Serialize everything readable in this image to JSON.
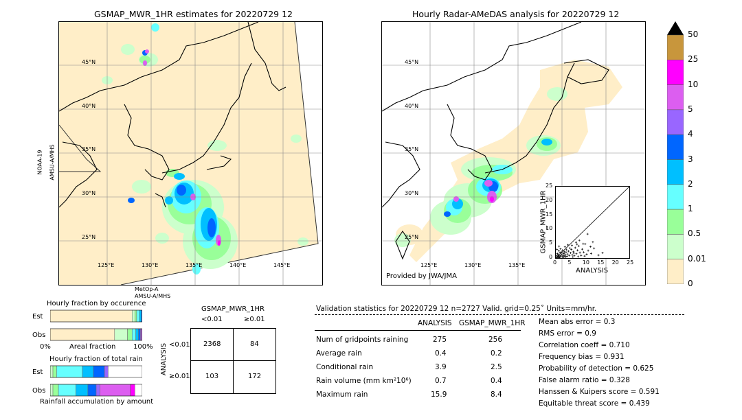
{
  "left_map": {
    "title": "GSMAP_MWR_1HR estimates for 20220729 12",
    "lat_labels": [
      "45°N",
      "40°N",
      "35°N",
      "30°N",
      "25°N"
    ],
    "lon_labels": [
      "125°E",
      "130°E",
      "135°E",
      "140°E",
      "145°E"
    ],
    "satellite_left": "NOAA-19\nAMSU-A/MHS",
    "satellite_left_1": "NOAA-19",
    "satellite_left_2": "AMSU-A/MHS",
    "satellite_bottom_1": "MetOp-A",
    "satellite_bottom_2": "AMSU-A/MHS"
  },
  "right_map": {
    "title": "Hourly Radar-AMeDAS analysis for 20220729 12",
    "lat_labels": [
      "45°N",
      "40°N",
      "35°N",
      "30°N",
      "25°N"
    ],
    "lon_labels": [
      "125°E",
      "130°E",
      "135°E"
    ],
    "credit": "Provided by JWA/JMA"
  },
  "colorbar": {
    "labels": [
      "50",
      "25",
      "10",
      "5",
      "4",
      "3",
      "2",
      "1",
      "0.5",
      "0.01",
      "0"
    ],
    "colors": [
      "#c8963c",
      "#ff00ff",
      "#dc5ef0",
      "#9966ff",
      "#0066ff",
      "#00bfff",
      "#66ffff",
      "#99ff99",
      "#ccffcc",
      "#ffeec8"
    ]
  },
  "chart_data": [
    {
      "type": "scatter",
      "title": "",
      "xlabel": "ANALYSIS",
      "ylabel": "GSMAP_MWR_1HR",
      "xlim": [
        0,
        25
      ],
      "ylim": [
        0,
        25
      ],
      "xticks": [
        "0",
        "5",
        "10",
        "15",
        "20",
        "25"
      ],
      "yticks": [
        "0",
        "5",
        "10",
        "15",
        "20",
        "25"
      ],
      "points": [
        [
          0.3,
          0.2
        ],
        [
          0.5,
          0.4
        ],
        [
          0.8,
          0.1
        ],
        [
          1.0,
          0.6
        ],
        [
          1.2,
          0.3
        ],
        [
          1.5,
          0.8
        ],
        [
          1.8,
          0.5
        ],
        [
          2.0,
          1.2
        ],
        [
          2.2,
          0.4
        ],
        [
          2.5,
          0.9
        ],
        [
          2.8,
          1.5
        ],
        [
          3.0,
          0.7
        ],
        [
          3.3,
          1.1
        ],
        [
          3.5,
          2.0
        ],
        [
          3.8,
          0.6
        ],
        [
          4.0,
          1.4
        ],
        [
          4.3,
          2.4
        ],
        [
          4.6,
          0.9
        ],
        [
          5.0,
          1.8
        ],
        [
          5.3,
          3.0
        ],
        [
          5.6,
          1.1
        ],
        [
          6.0,
          2.2
        ],
        [
          6.3,
          0.8
        ],
        [
          6.6,
          3.6
        ],
        [
          7.0,
          1.5
        ],
        [
          7.4,
          2.7
        ],
        [
          7.8,
          4.2
        ],
        [
          8.2,
          1.9
        ],
        [
          8.6,
          0.9
        ],
        [
          9.0,
          3.1
        ],
        [
          9.5,
          2.0
        ],
        [
          10.0,
          4.9
        ],
        [
          10.5,
          1.3
        ],
        [
          11.0,
          2.6
        ],
        [
          12.0,
          1.6
        ],
        [
          13.0,
          3.4
        ],
        [
          14.5,
          1.0
        ],
        [
          15.9,
          1.8
        ],
        [
          0.5,
          1.6
        ],
        [
          1.0,
          2.5
        ],
        [
          1.6,
          3.2
        ],
        [
          2.3,
          2.8
        ],
        [
          3.1,
          3.9
        ],
        [
          4.1,
          4.6
        ],
        [
          0.2,
          0.8
        ],
        [
          0.7,
          1.3
        ],
        [
          1.3,
          0.2
        ],
        [
          2.7,
          0.3
        ],
        [
          5.8,
          0.4
        ],
        [
          6.9,
          5.5
        ],
        [
          8.0,
          6.2
        ],
        [
          9.3,
          5.0
        ],
        [
          10.8,
          8.4
        ],
        [
          7.2,
          4.8
        ],
        [
          11.8,
          4.0
        ],
        [
          12.6,
          5.6
        ],
        [
          0.4,
          3.0
        ],
        [
          1.1,
          4.1
        ],
        [
          1.9,
          2.1
        ],
        [
          2.4,
          1.7
        ],
        [
          3.6,
          2.9
        ],
        [
          4.8,
          3.5
        ],
        [
          5.5,
          4.4
        ],
        [
          6.1,
          1.7
        ],
        [
          7.6,
          0.5
        ],
        [
          9.8,
          0.7
        ],
        [
          0.9,
          0.9
        ],
        [
          1.4,
          1.9
        ],
        [
          2.9,
          2.2
        ],
        [
          3.4,
          0.4
        ]
      ]
    },
    {
      "type": "bar",
      "title": "Hourly fraction by occurence",
      "categories": [
        "Est",
        "Obs"
      ],
      "xlabel": "Areal fraction",
      "xtick_left": "0%",
      "xtick_right": "100%",
      "series": [
        {
          "color": "#ffeec8",
          "values": [
            0.89,
            0.7
          ]
        },
        {
          "color": "#ccffcc",
          "values": [
            0.03,
            0.14
          ]
        },
        {
          "color": "#99ff99",
          "values": [
            0.02,
            0.05
          ]
        },
        {
          "color": "#66ffff",
          "values": [
            0.03,
            0.04
          ]
        },
        {
          "color": "#00bfff",
          "values": [
            0.02,
            0.03
          ]
        },
        {
          "color": "#0066ff",
          "values": [
            0.01,
            0.02
          ]
        },
        {
          "color": "#9966ff",
          "values": [
            0.0,
            0.01
          ]
        },
        {
          "color": "#dc5ef0",
          "values": [
            0.0,
            0.01
          ]
        }
      ]
    },
    {
      "type": "bar",
      "title": "Hourly fraction of total rain",
      "categories": [
        "Est",
        "Obs"
      ],
      "xlabel": "Rainfall accumulation by amount",
      "series": [
        {
          "color": "#ccffcc",
          "values": [
            0.03,
            0.03
          ]
        },
        {
          "color": "#99ff99",
          "values": [
            0.04,
            0.06
          ]
        },
        {
          "color": "#66ffff",
          "values": [
            0.28,
            0.19
          ]
        },
        {
          "color": "#00bfff",
          "values": [
            0.12,
            0.13
          ]
        },
        {
          "color": "#0066ff",
          "values": [
            0.12,
            0.09
          ]
        },
        {
          "color": "#9966ff",
          "values": [
            0.04,
            0.04
          ]
        },
        {
          "color": "#dc5ef0",
          "values": [
            0.0,
            0.33
          ]
        },
        {
          "color": "#ff00ff",
          "values": [
            0.0,
            0.05
          ]
        }
      ]
    },
    {
      "type": "table",
      "title": "GSMAP_MWR_1HR",
      "col_headers": [
        "<0.01",
        "≥0.01"
      ],
      "row_axis_label": "ANALYSIS",
      "row_headers": [
        "<0.01",
        "≥0.01"
      ],
      "cells": [
        [
          "2368",
          "84"
        ],
        [
          "103",
          "172"
        ]
      ]
    }
  ],
  "validation": {
    "header": "Validation statistics for 20220729 12  n=2727 Valid. grid=0.25˚ Units=mm/hr.",
    "col_analysis": "ANALYSIS",
    "col_gsmap": "GSMAP_MWR_1HR",
    "rows": [
      {
        "label": "Num of gridpoints raining",
        "a": "275",
        "g": "256"
      },
      {
        "label": "Average rain",
        "a": "0.4",
        "g": "0.2"
      },
      {
        "label": "Conditional rain",
        "a": "3.9",
        "g": "2.5"
      },
      {
        "label": "Rain volume (mm km²10⁶)",
        "a": "0.7",
        "g": "0.4"
      },
      {
        "label": "Maximum rain",
        "a": "15.9",
        "g": "8.4"
      }
    ],
    "scores": [
      "Mean abs error =    0.3",
      "RMS error =    0.9",
      "Correlation coeff =  0.710",
      "Frequency bias =  0.931",
      "Probability of detection =  0.625",
      "False alarm ratio =  0.328",
      "Hanssen & Kuipers score =  0.591",
      "Equitable threat score =  0.439"
    ]
  }
}
